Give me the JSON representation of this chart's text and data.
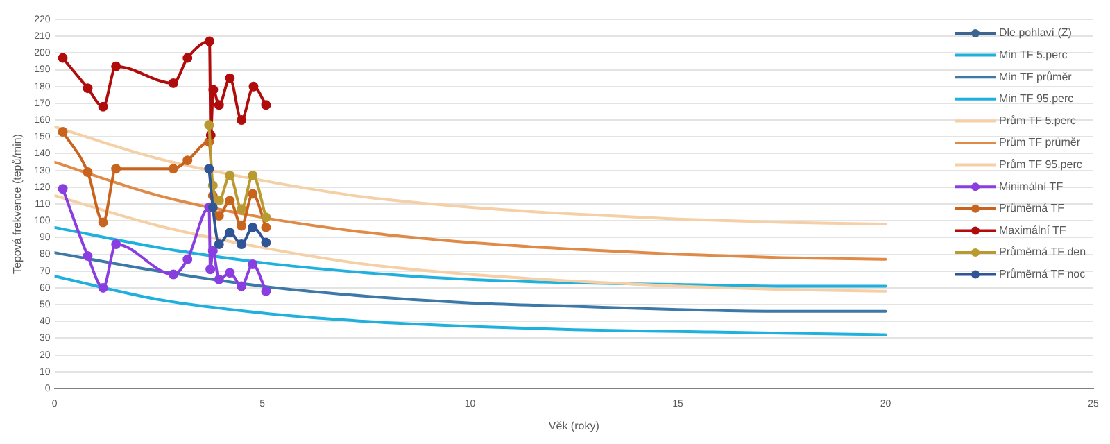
{
  "chart_data": {
    "type": "line",
    "xlabel": "Věk (roky)",
    "ylabel": "Tepová frekvence (tepů/min)",
    "xlim": [
      0,
      25
    ],
    "xticks": [
      0,
      5,
      10,
      15,
      20,
      25
    ],
    "ylim": [
      0,
      220
    ],
    "yticks": [
      0,
      10,
      20,
      30,
      40,
      50,
      60,
      70,
      80,
      90,
      100,
      110,
      120,
      130,
      140,
      150,
      160,
      170,
      180,
      190,
      200,
      210,
      220
    ],
    "grid": "y",
    "legend": "top right",
    "series": [
      {
        "name": "Dle pohlaví (Z)",
        "color": "#3c6590",
        "marker": "circle"
      },
      {
        "name": "Min TF 5.perc",
        "color": "#1fb0dd",
        "marker": "none",
        "x": [
          0,
          2.5,
          5,
          7.5,
          10,
          12.5,
          15,
          17.5,
          20
        ],
        "values": [
          67,
          53,
          45,
          40,
          37,
          35,
          34,
          33,
          32
        ]
      },
      {
        "name": "Min TF průměr",
        "color": "#3c78a8",
        "marker": "none",
        "x": [
          0,
          2.5,
          5,
          7.5,
          10,
          12.5,
          15,
          17.5,
          20
        ],
        "values": [
          81,
          70,
          61,
          55,
          51,
          49,
          47,
          46,
          46
        ]
      },
      {
        "name": "Min TF 95.perc",
        "color": "#1fb0dd",
        "marker": "none",
        "x": [
          0,
          2.5,
          5,
          7.5,
          10,
          12.5,
          15,
          17.5,
          20
        ],
        "values": [
          96,
          84,
          75,
          69,
          65,
          63,
          62,
          61,
          61
        ]
      },
      {
        "name": "Prům TF 5.perc",
        "color": "#f5cfa5",
        "marker": "none",
        "x": [
          0,
          2.5,
          5,
          7.5,
          10,
          12.5,
          15,
          17.5,
          20
        ],
        "values": [
          115,
          97,
          84,
          74,
          68,
          64,
          61,
          59,
          58
        ]
      },
      {
        "name": "Prům TF průměr",
        "color": "#e08a48",
        "marker": "none",
        "x": [
          0,
          2.5,
          5,
          7.5,
          10,
          12.5,
          15,
          17.5,
          20
        ],
        "values": [
          135,
          115,
          102,
          93,
          87,
          83,
          80,
          78,
          77
        ]
      },
      {
        "name": "Prům TF 95.perc",
        "color": "#f5cfa5",
        "marker": "none",
        "x": [
          0,
          2.5,
          5,
          7.5,
          10,
          12.5,
          15,
          17.5,
          20
        ],
        "values": [
          156,
          137,
          124,
          114,
          108,
          104,
          101,
          99,
          98
        ]
      },
      {
        "name": "Minimální TF",
        "color": "#8a3ee0",
        "marker": "circle",
        "x": [
          0.2,
          0.8,
          1.17,
          1.48,
          2.86,
          3.2,
          3.72,
          3.75,
          3.81,
          3.96,
          4.22,
          4.5,
          4.77,
          5.09
        ],
        "values": [
          119,
          79,
          60,
          86,
          68,
          77,
          108,
          71,
          82,
          65,
          69,
          61,
          74,
          58
        ]
      },
      {
        "name": "Průměrná TF",
        "color": "#c8641e",
        "marker": "circle",
        "x": [
          0.2,
          0.8,
          1.17,
          1.48,
          2.86,
          3.2,
          3.72,
          3.81,
          3.96,
          4.22,
          4.5,
          4.77,
          5.09
        ],
        "values": [
          153,
          129,
          99,
          131,
          131,
          136,
          147,
          115,
          103,
          112,
          97,
          116,
          96
        ]
      },
      {
        "name": "Maximální TF",
        "color": "#b00c0c",
        "marker": "circle",
        "x": [
          0.2,
          0.8,
          1.17,
          1.48,
          2.86,
          3.2,
          3.73,
          3.76,
          3.82,
          3.96,
          4.22,
          4.5,
          4.79,
          5.09
        ],
        "values": [
          197,
          179,
          168,
          192,
          182,
          197,
          207,
          151,
          178,
          169,
          185,
          160,
          180,
          169
        ]
      },
      {
        "name": "Průměrná TF den",
        "color": "#b89a30",
        "marker": "circle",
        "x": [
          3.72,
          3.81,
          3.96,
          4.22,
          4.5,
          4.77,
          5.09
        ],
        "values": [
          157,
          121,
          112,
          127,
          107,
          127,
          102
        ]
      },
      {
        "name": "Průměrná TF noc",
        "color": "#2f5597",
        "marker": "circle",
        "x": [
          3.72,
          3.81,
          3.96,
          4.22,
          4.5,
          4.77,
          5.09
        ],
        "values": [
          131,
          108,
          86,
          93,
          86,
          96,
          87
        ]
      }
    ]
  }
}
